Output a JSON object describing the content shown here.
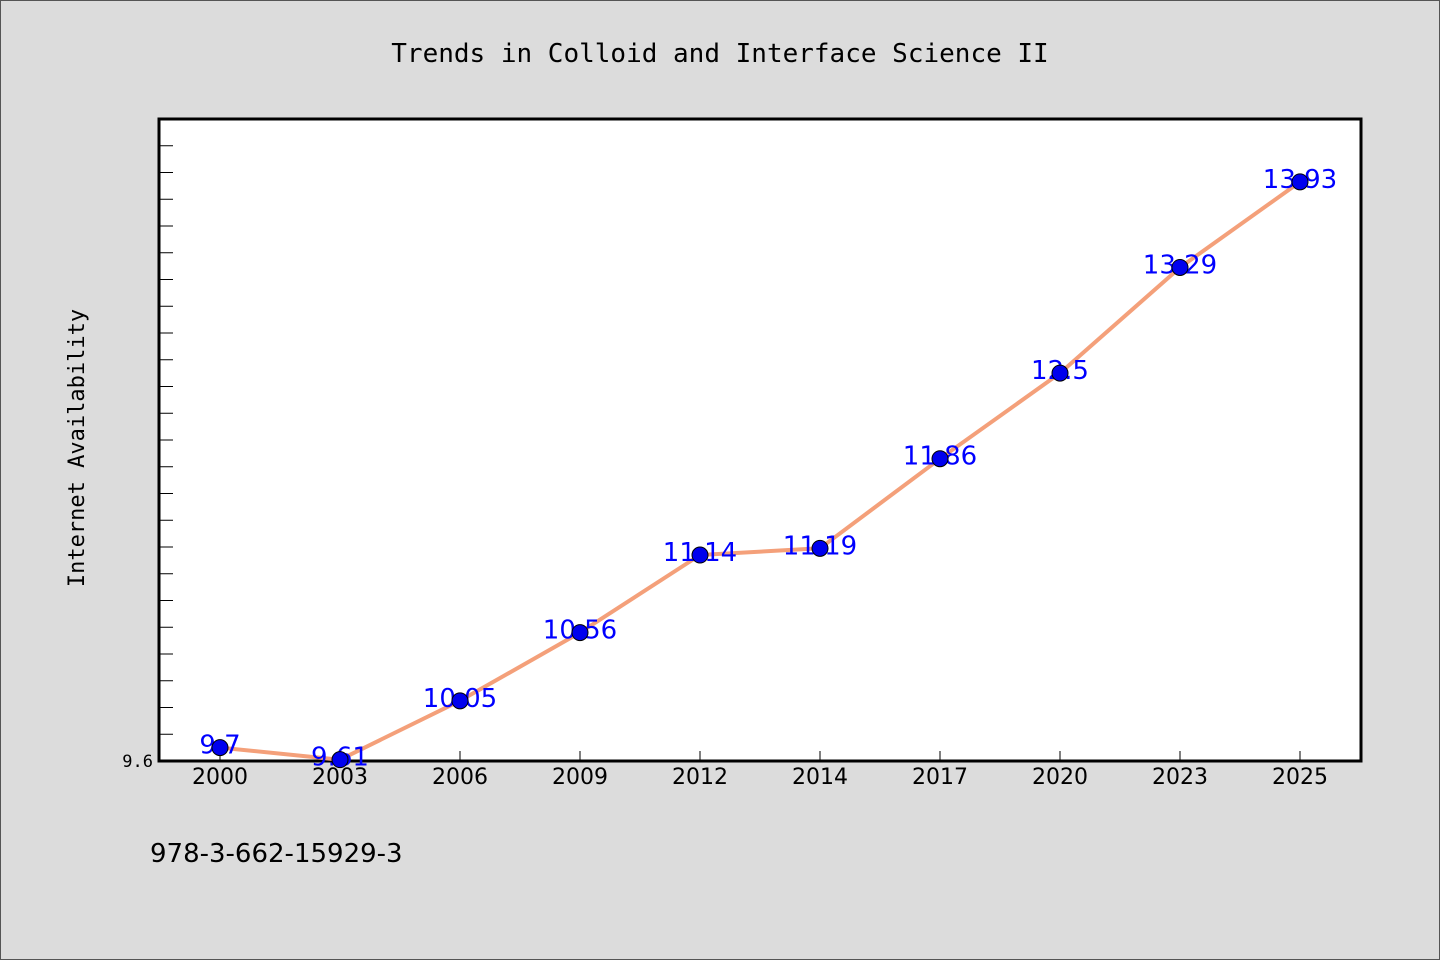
{
  "chart_data": {
    "type": "line",
    "title": "Trends in Colloid and Interface Science II",
    "xlabel": "",
    "ylabel": "Internet Availability",
    "categories": [
      "2000",
      "2003",
      "2006",
      "2009",
      "2012",
      "2014",
      "2017",
      "2020",
      "2023",
      "2025"
    ],
    "series": [
      {
        "values": [
          9.7,
          9.61,
          10.05,
          10.56,
          11.14,
          11.19,
          11.86,
          12.5,
          13.29,
          13.93
        ]
      }
    ],
    "data_labels": [
      "9.7",
      "9.61",
      "10.05",
      "10.56",
      "11.14",
      "11.19",
      "11.86",
      "12.5",
      "13.29",
      "13.93"
    ],
    "ylim": [
      9.6,
      14.4
    ],
    "yticks": [
      "9.6"
    ],
    "grid": false,
    "legend": "none",
    "colors": {
      "line": "#f4a07a",
      "marker": "#0000ee",
      "data_label": "#0000ff",
      "background": "#dcdcdc",
      "plot_background": "#ffffff"
    }
  },
  "footer": {
    "isbn": "978-3-662-15929-3"
  }
}
